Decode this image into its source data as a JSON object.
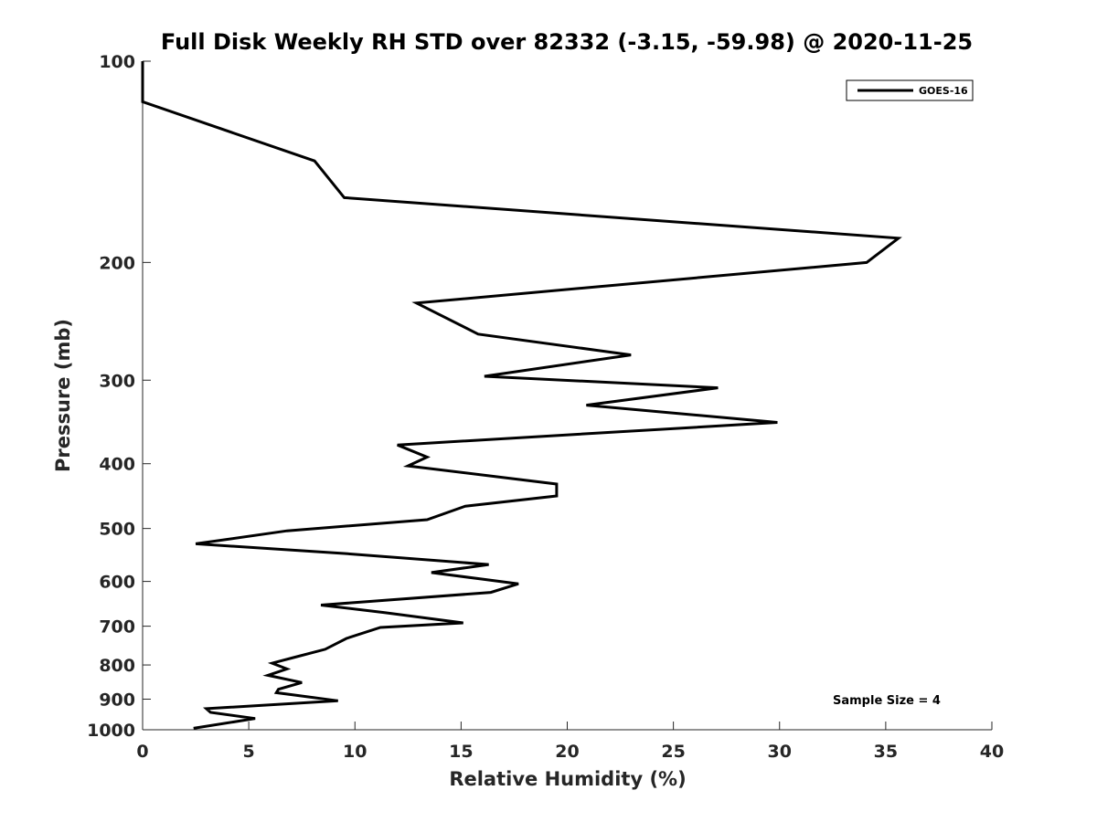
{
  "chart_data": {
    "type": "line",
    "title": "Full Disk Weekly RH STD over 82332 (-3.15, -59.98) @ 2020-11-25",
    "xlabel": "Relative Humidity (%)",
    "ylabel": "Pressure (mb)",
    "xlim": [
      0,
      40
    ],
    "ylim": [
      100,
      1000
    ],
    "y_scale": "log",
    "y_reversed": true,
    "x_ticks": [
      0,
      5,
      10,
      15,
      20,
      25,
      30,
      35,
      40
    ],
    "y_ticks": [
      100,
      200,
      300,
      400,
      500,
      600,
      700,
      800,
      900,
      1000
    ],
    "grid": false,
    "legend_position": "top-right",
    "series": [
      {
        "name": "GOES-16",
        "color": "#000000",
        "x": [
          0,
          0,
          8.1,
          9.5,
          35.6,
          34.1,
          12.9,
          15.8,
          23.0,
          16.1,
          27.1,
          20.9,
          29.9,
          12.0,
          13.4,
          12.5,
          19.5,
          19.5,
          15.2,
          13.4,
          6.8,
          2.5,
          9.5,
          16.3,
          13.6,
          17.7,
          16.4,
          8.4,
          11.4,
          15.1,
          11.2,
          9.6,
          8.6,
          7.1,
          6.1,
          6.8,
          5.9,
          7.5,
          6.4,
          6.3,
          9.2,
          3.0,
          3.2,
          5.3,
          2.4
        ],
        "y": [
          100,
          115,
          141,
          160,
          184,
          200,
          230,
          256,
          275,
          296,
          308,
          327,
          347,
          375,
          391,
          403,
          429,
          447,
          463,
          485,
          504,
          527,
          545,
          566,
          582,
          605,
          623,
          651,
          668,
          692,
          703,
          730,
          758,
          780,
          795,
          811,
          829,
          850,
          870,
          880,
          905,
          930,
          942,
          962,
          995
        ]
      }
    ],
    "annotations": [
      "Sample Size = 4"
    ]
  }
}
